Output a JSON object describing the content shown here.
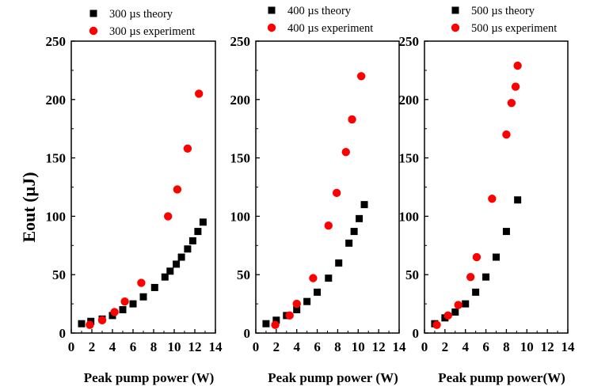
{
  "ylabel": "Eout (µJ)",
  "colors": {
    "theory": "#000000",
    "experiment": "#ff0000"
  },
  "chart_data": [
    {
      "type": "scatter",
      "xlabel": "Peak pump power (W)",
      "xlim": [
        0,
        14
      ],
      "ylim": [
        0,
        250
      ],
      "xticks": [
        0,
        2,
        4,
        6,
        8,
        10,
        12,
        14
      ],
      "yticks": [
        0,
        50,
        100,
        150,
        200,
        250
      ],
      "legend_position": "top",
      "series": [
        {
          "name": "300 µs theory",
          "marker": "square",
          "color": "#000000",
          "x": [
            1.0,
            1.9,
            3.0,
            4.0,
            5.0,
            6.0,
            7.0,
            8.1,
            9.1,
            9.6,
            10.2,
            10.7,
            11.3,
            11.8,
            12.3,
            12.8
          ],
          "y": [
            8,
            10,
            12,
            15,
            20,
            25,
            31,
            39,
            48,
            53,
            59,
            65,
            72,
            79,
            87,
            95
          ]
        },
        {
          "name": "300 µs experiment",
          "marker": "circle",
          "color": "#ff0000",
          "x": [
            1.8,
            3.0,
            4.2,
            5.2,
            6.8,
            9.4,
            10.3,
            11.3,
            12.4
          ],
          "y": [
            7,
            11,
            18,
            27,
            43,
            100,
            123,
            158,
            205
          ]
        }
      ]
    },
    {
      "type": "scatter",
      "xlabel": "Peak pump power (W)",
      "xlim": [
        0,
        14
      ],
      "ylim": [
        0,
        250
      ],
      "xticks": [
        0,
        2,
        4,
        6,
        8,
        10,
        12,
        14
      ],
      "yticks": [
        0,
        50,
        100,
        150,
        200,
        250
      ],
      "legend_position": "top",
      "series": [
        {
          "name": "400 µs theory",
          "marker": "square",
          "color": "#000000",
          "x": [
            1.0,
            2.0,
            3.0,
            4.0,
            5.0,
            6.0,
            7.1,
            8.1,
            9.1,
            9.6,
            10.1,
            10.6
          ],
          "y": [
            8,
            11,
            15,
            20,
            27,
            35,
            47,
            60,
            77,
            87,
            98,
            110
          ]
        },
        {
          "name": "400 µs experiment",
          "marker": "circle",
          "color": "#ff0000",
          "x": [
            1.9,
            3.3,
            4.0,
            5.6,
            7.1,
            7.9,
            8.8,
            9.4,
            10.3
          ],
          "y": [
            7,
            15,
            25,
            47,
            92,
            120,
            155,
            183,
            220
          ]
        }
      ]
    },
    {
      "type": "scatter",
      "xlabel": "Peak pump power(W)",
      "xlim": [
        0,
        14
      ],
      "ylim": [
        0,
        250
      ],
      "xticks": [
        0,
        2,
        4,
        6,
        8,
        10,
        12,
        14
      ],
      "yticks": [
        0,
        50,
        100,
        150,
        200,
        250
      ],
      "legend_position": "top",
      "series": [
        {
          "name": "500 µs theory",
          "marker": "square",
          "color": "#000000",
          "x": [
            1.0,
            2.0,
            3.0,
            4.0,
            5.0,
            6.0,
            7.0,
            8.0,
            9.1
          ],
          "y": [
            8,
            13,
            18,
            25,
            35,
            48,
            65,
            87,
            114
          ]
        },
        {
          "name": "500 µs experiment",
          "marker": "circle",
          "color": "#ff0000",
          "x": [
            1.2,
            2.3,
            3.3,
            4.5,
            5.1,
            6.6,
            8.0,
            8.5,
            8.9,
            9.1
          ],
          "y": [
            7,
            15,
            24,
            48,
            65,
            115,
            170,
            197,
            211,
            229
          ]
        }
      ]
    }
  ]
}
